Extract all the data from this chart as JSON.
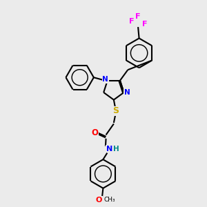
{
  "bg_color": "#ebebeb",
  "bond_color": "#000000",
  "colors": {
    "N": "#0000ff",
    "O": "#ff0000",
    "S": "#ccaa00",
    "F": "#ff00ff",
    "H": "#008888"
  },
  "lw": 1.4,
  "fs": 7.5
}
